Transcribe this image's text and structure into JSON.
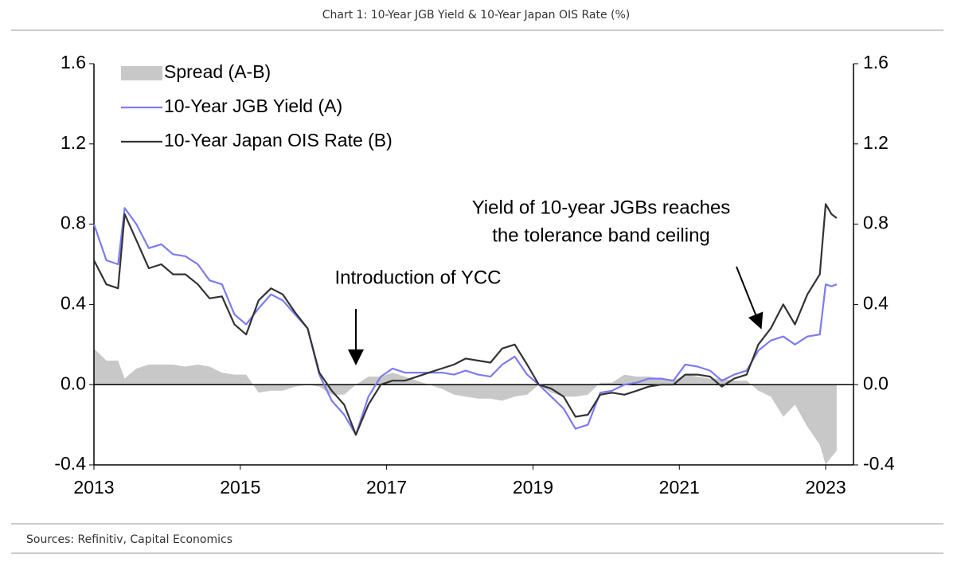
{
  "chart_data": {
    "type": "line",
    "title": "Chart 1: 10-Year JGB Yield & 10-Year Japan OIS Rate (%)",
    "source": "Sources: Refinitiv, Capital Economics",
    "x": [
      2013.0,
      2013.17,
      2013.33,
      2013.42,
      2013.58,
      2013.75,
      2013.92,
      2014.08,
      2014.25,
      2014.42,
      2014.58,
      2014.75,
      2014.92,
      2015.08,
      2015.25,
      2015.42,
      2015.58,
      2015.75,
      2015.92,
      2016.08,
      2016.25,
      2016.42,
      2016.58,
      2016.75,
      2016.92,
      2017.08,
      2017.25,
      2017.42,
      2017.58,
      2017.75,
      2017.92,
      2018.08,
      2018.25,
      2018.42,
      2018.58,
      2018.75,
      2018.92,
      2019.08,
      2019.25,
      2019.42,
      2019.58,
      2019.75,
      2019.92,
      2020.08,
      2020.25,
      2020.42,
      2020.58,
      2020.75,
      2020.92,
      2021.08,
      2021.25,
      2021.42,
      2021.58,
      2021.75,
      2021.92,
      2022.08,
      2022.25,
      2022.42,
      2022.58,
      2022.75,
      2022.92,
      2023.0,
      2023.08,
      2023.15
    ],
    "series": [
      {
        "name": "Spread (A-B)",
        "kind": "area",
        "color": "#c8c8c8",
        "values": [
          0.18,
          0.12,
          0.12,
          0.03,
          0.08,
          0.1,
          0.1,
          0.1,
          0.09,
          0.1,
          0.09,
          0.06,
          0.05,
          0.05,
          -0.04,
          -0.03,
          -0.03,
          -0.01,
          0,
          -0.01,
          -0.05,
          -0.05,
          0,
          0.04,
          0.04,
          0.06,
          0.04,
          0.02,
          0,
          -0.02,
          -0.05,
          -0.06,
          -0.07,
          -0.07,
          -0.08,
          -0.06,
          -0.05,
          0,
          -0.04,
          -0.06,
          -0.06,
          -0.05,
          0.01,
          0.01,
          0.05,
          0.04,
          0.04,
          0.03,
          0.02,
          0.05,
          0.04,
          0.03,
          0.03,
          0.02,
          0.02,
          -0.03,
          -0.06,
          -0.16,
          -0.1,
          -0.21,
          -0.3,
          -0.4,
          -0.36,
          -0.33
        ]
      },
      {
        "name": "10-Year JGB Yield (A)",
        "kind": "line",
        "color": "#7b7bf0",
        "values": [
          0.8,
          0.62,
          0.6,
          0.88,
          0.8,
          0.68,
          0.7,
          0.65,
          0.64,
          0.6,
          0.52,
          0.5,
          0.35,
          0.3,
          0.38,
          0.45,
          0.42,
          0.35,
          0.28,
          0.05,
          -0.08,
          -0.15,
          -0.25,
          -0.06,
          0.04,
          0.08,
          0.06,
          0.06,
          0.06,
          0.06,
          0.05,
          0.07,
          0.05,
          0.04,
          0.1,
          0.14,
          0.05,
          0.0,
          -0.06,
          -0.12,
          -0.22,
          -0.2,
          -0.04,
          -0.03,
          0.0,
          0.01,
          0.03,
          0.03,
          0.02,
          0.1,
          0.09,
          0.07,
          0.02,
          0.05,
          0.07,
          0.17,
          0.22,
          0.24,
          0.2,
          0.24,
          0.25,
          0.5,
          0.49,
          0.5
        ]
      },
      {
        "name": "10-Year Japan OIS Rate (B)",
        "kind": "line",
        "color": "#333333",
        "values": [
          0.62,
          0.5,
          0.48,
          0.85,
          0.72,
          0.58,
          0.6,
          0.55,
          0.55,
          0.5,
          0.43,
          0.44,
          0.3,
          0.25,
          0.42,
          0.48,
          0.45,
          0.36,
          0.28,
          0.06,
          -0.03,
          -0.1,
          -0.25,
          -0.1,
          0.0,
          0.02,
          0.02,
          0.04,
          0.06,
          0.08,
          0.1,
          0.13,
          0.12,
          0.11,
          0.18,
          0.2,
          0.1,
          0.0,
          -0.02,
          -0.06,
          -0.16,
          -0.15,
          -0.05,
          -0.04,
          -0.05,
          -0.03,
          -0.01,
          0.0,
          0.0,
          0.05,
          0.05,
          0.04,
          -0.01,
          0.03,
          0.05,
          0.2,
          0.28,
          0.4,
          0.3,
          0.45,
          0.55,
          0.9,
          0.85,
          0.83
        ]
      }
    ],
    "xlim": [
      2013,
      2023.38
    ],
    "xticks": [
      2013,
      2015,
      2017,
      2019,
      2021,
      2023
    ],
    "ylim": [
      -0.4,
      1.6
    ],
    "yticks": [
      {
        "value": -0.4,
        "label": "-0.4"
      },
      {
        "value": 0,
        "label": "0.0"
      },
      {
        "value": 0.4,
        "label": "0.4"
      },
      {
        "value": 0.8,
        "label": "0.8"
      },
      {
        "value": 1.2,
        "label": "1.2"
      },
      {
        "value": 1.6,
        "label": "1.6"
      }
    ],
    "y2lim": [
      -0.4,
      1.6
    ],
    "y2ticks": [
      {
        "value": -0.4,
        "label": "-0.4"
      },
      {
        "value": 0,
        "label": "0.0"
      },
      {
        "value": 0.4,
        "label": "0.4"
      },
      {
        "value": 0.8,
        "label": "0.8"
      },
      {
        "value": 1.2,
        "label": "1.2"
      },
      {
        "value": 1.6,
        "label": "1.6"
      }
    ],
    "legend": "top-left",
    "annotations": [
      {
        "lines": [
          "Introduction of YCC"
        ]
      },
      {
        "lines": [
          "Yield of 10-year JGBs reaches",
          "the tolerance band ceiling"
        ]
      }
    ]
  }
}
